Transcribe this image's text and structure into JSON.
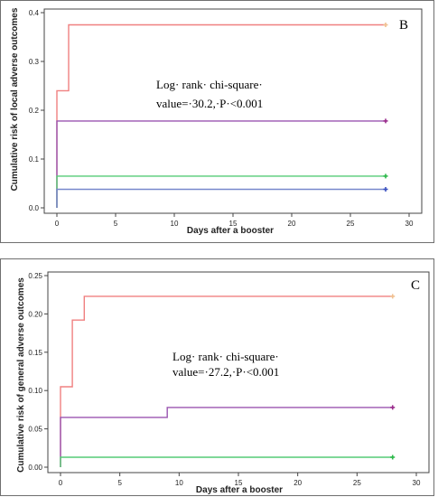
{
  "chart_data": [
    {
      "type": "line",
      "panel_label": "B",
      "ylabel": "Cumulative risk of local adverse outcomes",
      "xlabel": "Days after a booster",
      "xlim": [
        0,
        30
      ],
      "ylim": [
        0,
        0.4
      ],
      "x_ticks": [
        "0",
        "5",
        "10",
        "15",
        "20",
        "25",
        "30"
      ],
      "y_ticks": [
        "0.0",
        "0.1",
        "0.2",
        "0.3",
        "0.4"
      ],
      "annotation": [
        "Log· rank· chi-square·",
        "value=·30.2,·P·<0.001"
      ],
      "series": [
        {
          "color": "#f08080",
          "steps": [
            [
              0,
              0.0
            ],
            [
              0,
              0.24
            ],
            [
              1,
              0.24
            ],
            [
              1,
              0.375
            ],
            [
              28,
              0.375
            ]
          ],
          "end_marker": {
            "x": 28,
            "y": 0.375,
            "color": "#f0c090"
          }
        },
        {
          "color": "#9a55b0",
          "steps": [
            [
              0,
              0.0
            ],
            [
              0,
              0.178
            ],
            [
              28,
              0.178
            ]
          ],
          "end_marker": {
            "x": 28,
            "y": 0.178,
            "color": "#9a2c8c"
          }
        },
        {
          "color": "#55cc77",
          "steps": [
            [
              0,
              0.0
            ],
            [
              0,
              0.065
            ],
            [
              28,
              0.065
            ]
          ],
          "end_marker": {
            "x": 28,
            "y": 0.065,
            "color": "#2cb84a"
          }
        },
        {
          "color": "#7788cc",
          "steps": [
            [
              0,
              0.0
            ],
            [
              0,
              0.038
            ],
            [
              28,
              0.038
            ]
          ],
          "end_marker": {
            "x": 28,
            "y": 0.038,
            "color": "#3a50c0"
          }
        }
      ],
      "grid": false
    },
    {
      "type": "line",
      "panel_label": "C",
      "ylabel": "Cumulative risk of general adverse outcomes",
      "xlabel": "Days after a booster",
      "xlim": [
        0,
        30
      ],
      "ylim": [
        0,
        0.25
      ],
      "x_ticks": [
        "0",
        "5",
        "10",
        "15",
        "20",
        "25",
        "30"
      ],
      "y_ticks": [
        "0.00",
        "0.05",
        "0.10",
        "0.15",
        "0.20",
        "0.25"
      ],
      "annotation": [
        "Log· rank· chi-square·",
        "value=·27.2,·P·<0.001"
      ],
      "series": [
        {
          "color": "#f08080",
          "steps": [
            [
              0,
              0.0
            ],
            [
              0,
              0.105
            ],
            [
              1,
              0.105
            ],
            [
              1,
              0.192
            ],
            [
              2,
              0.192
            ],
            [
              2,
              0.223
            ],
            [
              28,
              0.223
            ]
          ],
          "end_marker": {
            "x": 28,
            "y": 0.223,
            "color": "#f0c090"
          }
        },
        {
          "color": "#9a55b0",
          "steps": [
            [
              0,
              0.0
            ],
            [
              0,
              0.065
            ],
            [
              9,
              0.065
            ],
            [
              9,
              0.078
            ],
            [
              28,
              0.078
            ]
          ],
          "end_marker": {
            "x": 28,
            "y": 0.078,
            "color": "#9a2c8c"
          }
        },
        {
          "color": "#55cc77",
          "steps": [
            [
              0,
              0.0
            ],
            [
              0,
              0.013
            ],
            [
              28,
              0.013
            ]
          ],
          "end_marker": {
            "x": 28,
            "y": 0.013,
            "color": "#2cb84a"
          }
        }
      ],
      "grid": false
    }
  ]
}
